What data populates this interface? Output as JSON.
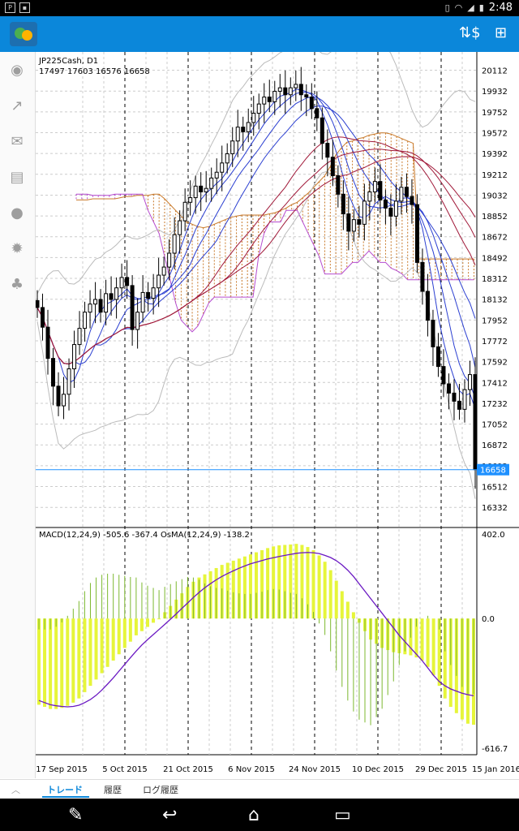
{
  "status_bar": {
    "time": "2:48"
  },
  "sidebar": {
    "icons": [
      "account-icon",
      "trade-arrow-icon",
      "mail-icon",
      "news-icon",
      "chat-icon",
      "settings-icon",
      "community-icon"
    ]
  },
  "toolbar": {
    "icons": [
      "symbol-dollar-icon",
      "new-order-icon"
    ]
  },
  "tabs": {
    "items": [
      {
        "label": "トレード"
      },
      {
        "label": "履歴"
      },
      {
        "label": "ログ履歴"
      }
    ]
  },
  "chart_data": [
    {
      "type": "candlestick",
      "symbol": "JP225Cash, D1",
      "ohlc_header": "17497 17603 16576 16658",
      "current_price": "16658",
      "y_ticks": [
        "20112",
        "19932",
        "19752",
        "19572",
        "19392",
        "19212",
        "19032",
        "18852",
        "18672",
        "18492",
        "18312",
        "18132",
        "17952",
        "17772",
        "17592",
        "17412",
        "17232",
        "17052",
        "16872",
        "16692",
        "16512",
        "16332"
      ],
      "x_ticks": [
        "17 Sep 2015",
        "5 Oct 2015",
        "21 Oct 2015",
        "6 Nov 2015",
        "24 Nov 2015",
        "10 Dec 2015",
        "29 Dec 2015",
        "15 Jan 2016"
      ],
      "ylim": [
        16200,
        20200
      ],
      "indicators": [
        "Ichimoku cloud",
        "Moving averages",
        "Bollinger bands"
      ],
      "close": [
        18060,
        17890,
        17620,
        17380,
        17210,
        17310,
        17530,
        17740,
        17880,
        18020,
        18090,
        18130,
        18020,
        18180,
        18130,
        18230,
        18320,
        18250,
        17870,
        18020,
        18190,
        18140,
        18230,
        18340,
        18410,
        18530,
        18690,
        18810,
        18970,
        19010,
        19110,
        19060,
        19090,
        19180,
        19230,
        19310,
        19390,
        19500,
        19620,
        19580,
        19660,
        19740,
        19820,
        19880,
        19840,
        19930,
        19960,
        19900,
        19960,
        19990,
        19900,
        19880,
        19780,
        19700,
        19480,
        19360,
        19200,
        19040,
        18870,
        18720,
        18820,
        18780,
        18980,
        19060,
        19150,
        18990,
        18920,
        18850,
        18980,
        19100,
        19020,
        18950,
        18450,
        18200,
        17950,
        17720,
        17550,
        17400,
        17320,
        17250,
        17180,
        17350,
        17480,
        16658
      ],
      "cloud_span_a": [
        18990,
        18990,
        18990,
        19000,
        19000,
        19000,
        19000,
        19000,
        19010,
        19020,
        19020,
        19030,
        19030,
        19030,
        19040,
        19040,
        19000,
        18950,
        18900,
        18850,
        18800,
        18780,
        18760,
        18750,
        18760,
        18780,
        18800,
        18820,
        18840,
        18850,
        18860,
        18860,
        18860,
        18860,
        18860,
        18870,
        18880,
        18900,
        18920,
        18950,
        18970,
        19010,
        19050,
        19100,
        19150,
        19200,
        19280,
        19380,
        19440,
        19490,
        19500,
        19520,
        19530,
        19550,
        19560,
        19570,
        19570,
        19560,
        19540,
        19520,
        19500,
        19480,
        18480,
        18480,
        18480,
        18480,
        18480,
        18480,
        18480,
        18480,
        18480,
        18480,
        18480,
        18480,
        18480
      ],
      "cloud_span_b": [
        19040,
        19040,
        19040,
        19030,
        19030,
        19030,
        19030,
        19040,
        19040,
        19040,
        19040,
        19040,
        19040,
        18900,
        18800,
        18700,
        18500,
        18300,
        18100,
        17950,
        17900,
        17850,
        17900,
        18000,
        18100,
        18150,
        18150,
        18150,
        18150,
        18150,
        18150,
        18150,
        18150,
        18500,
        18700,
        18800,
        18800,
        18800,
        18900,
        18900,
        18900,
        18800,
        18700,
        18600,
        18500,
        18350,
        18350,
        18350,
        18350,
        18400,
        18450,
        18450,
        18500,
        18550,
        18500,
        18450,
        18450,
        18400,
        18380,
        18350,
        18300,
        18300,
        18300,
        18300,
        18300,
        18300,
        18300,
        18300,
        18300,
        18300,
        18300,
        18300,
        18300,
        18300,
        18300
      ]
    },
    {
      "type": "bar",
      "title": "MACD(12,24,9) -505.6 -367.4 OsMA(12,24,9) -138.2",
      "y_ticks": [
        "402.0",
        "0.0",
        "-616.7"
      ],
      "ylim": [
        -616.7,
        402.0
      ],
      "macd": [
        -410,
        -420,
        -430,
        -430,
        -425,
        -415,
        -400,
        -380,
        -350,
        -320,
        -290,
        -260,
        -230,
        -200,
        -170,
        -140,
        -110,
        -80,
        -60,
        -40,
        -20,
        0,
        30,
        60,
        90,
        120,
        150,
        175,
        195,
        210,
        225,
        240,
        255,
        265,
        275,
        285,
        295,
        305,
        315,
        325,
        335,
        343,
        348,
        350,
        352,
        355,
        350,
        340,
        325,
        300,
        270,
        230,
        180,
        130,
        80,
        30,
        -20,
        -60,
        -100,
        -120,
        -140,
        -150,
        -160,
        -165,
        -170,
        -175,
        -185,
        -200,
        -230,
        -270,
        -320,
        -380,
        -420,
        -450,
        -480,
        -500,
        -505
      ],
      "signal": [
        -390,
        -400,
        -410,
        -415,
        -418,
        -420,
        -418,
        -412,
        -400,
        -385,
        -365,
        -340,
        -312,
        -282,
        -250,
        -218,
        -186,
        -155,
        -126,
        -100,
        -76,
        -52,
        -28,
        -3,
        22,
        48,
        74,
        100,
        124,
        146,
        166,
        184,
        200,
        214,
        227,
        239,
        250,
        260,
        268,
        276,
        283,
        289,
        295,
        300,
        305,
        310,
        313,
        314,
        313,
        309,
        300,
        290,
        275,
        255,
        230,
        200,
        165,
        130,
        95,
        60,
        25,
        -10,
        -45,
        -80,
        -110,
        -140,
        -170,
        -200,
        -235,
        -270,
        -300,
        -320,
        -335,
        -345,
        -355,
        -362,
        -367.4
      ],
      "osma": [
        -20,
        -20,
        -20,
        -15,
        -7,
        5,
        18,
        32,
        50,
        65,
        75,
        80,
        82,
        82,
        80,
        78,
        76,
        75,
        66,
        60,
        56,
        52,
        58,
        63,
        68,
        72,
        76,
        75,
        71,
        64,
        59,
        56,
        55,
        51,
        48,
        46,
        45,
        45,
        47,
        49,
        52,
        54,
        53,
        50,
        47,
        45,
        37,
        26,
        12,
        -9,
        -30,
        -60,
        -95,
        -125,
        -150,
        -170,
        -185,
        -190,
        -195,
        -180,
        -165,
        -140,
        -115,
        -85,
        -60,
        -35,
        -15,
        0,
        5,
        0,
        -20,
        -60,
        -85,
        -105,
        -125,
        -138,
        -138.2
      ]
    }
  ]
}
